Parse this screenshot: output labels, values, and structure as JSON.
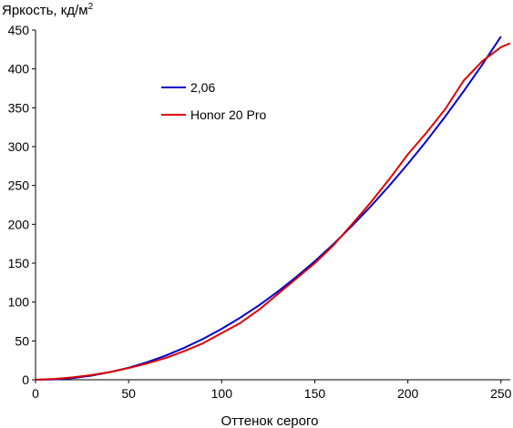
{
  "chart_data": {
    "type": "line",
    "ylabel": "Яркость, кд/м",
    "ylabel_sup": "2",
    "xlabel": "Оттенок серого",
    "xlim": [
      0,
      255
    ],
    "ylim": [
      0,
      450
    ],
    "xticks": [
      0,
      50,
      100,
      150,
      200,
      250
    ],
    "yticks": [
      0,
      50,
      100,
      150,
      200,
      250,
      300,
      350,
      400,
      450
    ],
    "grid": false,
    "legend_position": "upper-left",
    "series": [
      {
        "name": "2,06",
        "color": "#0000cc",
        "x": [
          0,
          10,
          20,
          30,
          40,
          50,
          60,
          70,
          80,
          90,
          100,
          110,
          120,
          130,
          140,
          150,
          160,
          170,
          180,
          190,
          200,
          210,
          220,
          230,
          240,
          250
        ],
        "y": [
          0,
          0.5,
          2.2,
          5.3,
          9.7,
          15.5,
          22.6,
          31.2,
          41.2,
          52.6,
          65.5,
          79.9,
          95.8,
          113.2,
          132.1,
          152.5,
          174.5,
          198.0,
          223.0,
          249.6,
          277.7,
          307.4,
          338.6,
          371.4,
          405.7,
          441.7
        ]
      },
      {
        "name": "Honor 20 Pro",
        "color": "#dd0000",
        "x": [
          0,
          10,
          20,
          30,
          40,
          50,
          60,
          70,
          80,
          90,
          100,
          110,
          120,
          130,
          140,
          150,
          160,
          170,
          180,
          190,
          200,
          210,
          220,
          230,
          240,
          250,
          255
        ],
        "y": [
          0,
          1,
          3,
          6,
          10,
          15,
          21,
          28,
          37,
          47,
          60,
          73,
          90,
          110,
          130,
          150,
          173,
          200,
          228,
          258,
          290,
          318,
          348,
          385,
          410,
          428,
          433
        ]
      }
    ]
  }
}
